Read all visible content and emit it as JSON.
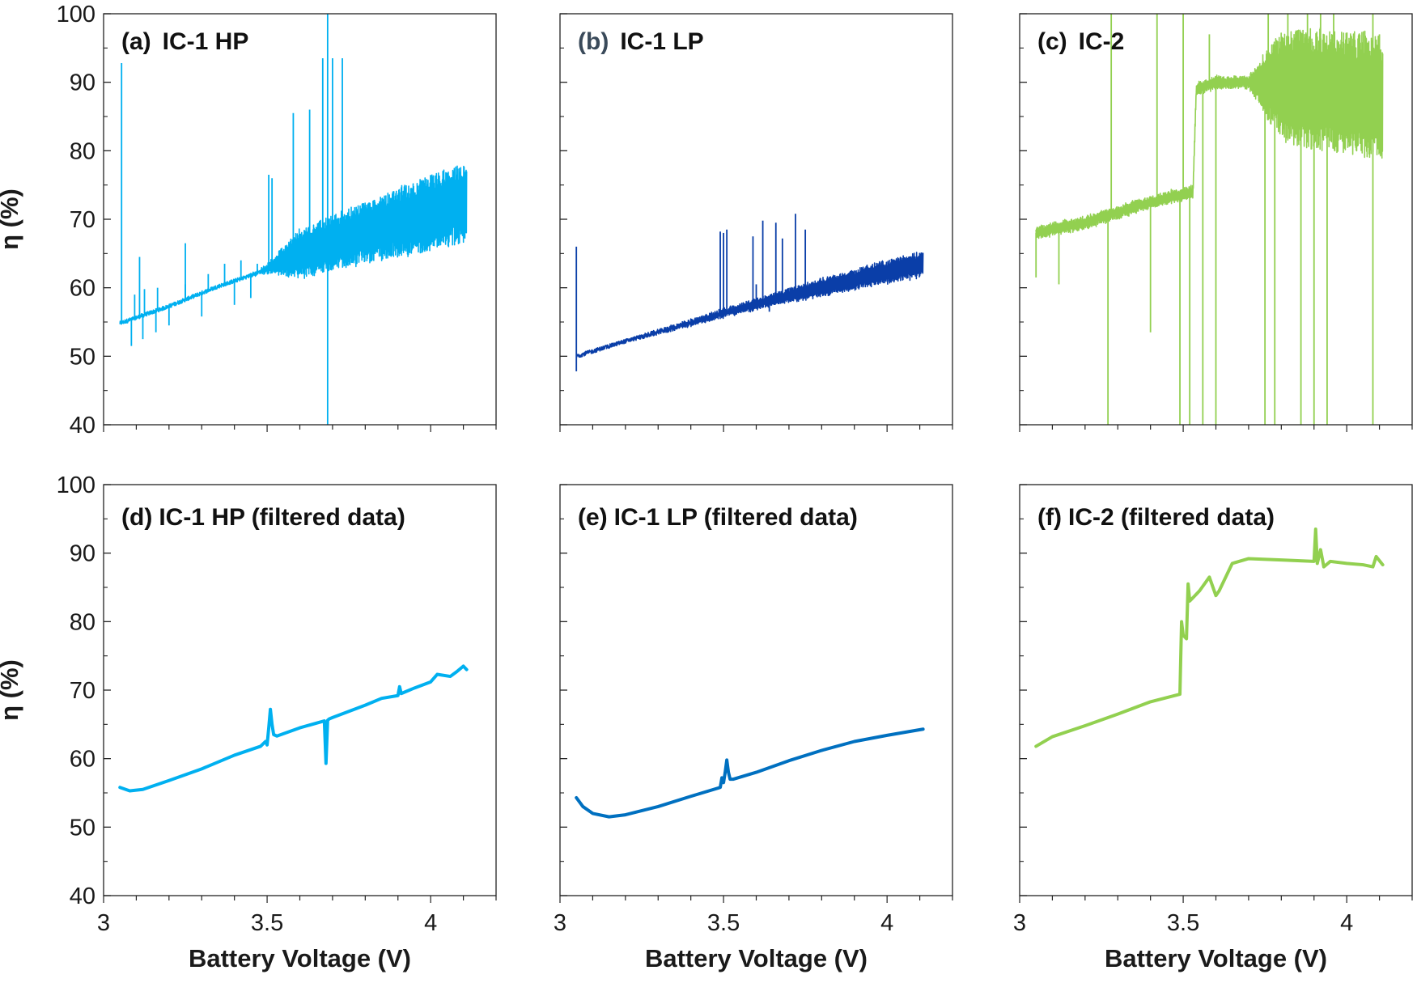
{
  "chart_data": {
    "type": "line",
    "layout": "2x3 grid of line plots",
    "shared": {
      "xlabel": "Battery Voltage (V)",
      "ylabel": "η (%)",
      "xlim": [
        3.0,
        4.2
      ],
      "ylim": [
        40,
        100
      ],
      "x_ticks": [
        3,
        3.5,
        4
      ],
      "x_tick_labels": [
        "3",
        "3.5",
        "4"
      ],
      "y_ticks": [
        40,
        50,
        60,
        70,
        80,
        90,
        100
      ],
      "y_tick_labels": [
        "40",
        "50",
        "60",
        "70",
        "80",
        "90",
        "100"
      ],
      "grid": false
    },
    "panels": [
      {
        "id": "a",
        "letter": "(a)",
        "label": "IC-1 HP",
        "color": "#00b0f0",
        "noisy": true,
        "x": [
          3.05,
          3.2,
          3.35,
          3.45,
          3.5,
          3.6,
          3.7,
          3.8,
          3.9,
          4.0,
          4.11
        ],
        "y": [
          54.8,
          57.3,
          60.2,
          61.8,
          62.8,
          65.0,
          66.5,
          68.0,
          69.5,
          71.0,
          72.5
        ],
        "noise_band": [
          0,
          0,
          0,
          0,
          0.5,
          3.5,
          4.0,
          4.5,
          5.0,
          5.5,
          5.5
        ],
        "spikes": [
          {
            "x": 3.055,
            "y": 92.8
          },
          {
            "x": 3.085,
            "y": 51.5
          },
          {
            "x": 3.095,
            "y": 59.0
          },
          {
            "x": 3.11,
            "y": 64.5
          },
          {
            "x": 3.12,
            "y": 52.5
          },
          {
            "x": 3.125,
            "y": 59.8
          },
          {
            "x": 3.16,
            "y": 53.5
          },
          {
            "x": 3.165,
            "y": 60.0
          },
          {
            "x": 3.2,
            "y": 54.5
          },
          {
            "x": 3.25,
            "y": 60.5
          },
          {
            "x": 3.25,
            "y": 66.5
          },
          {
            "x": 3.3,
            "y": 55.8
          },
          {
            "x": 3.32,
            "y": 62.0
          },
          {
            "x": 3.37,
            "y": 63.5
          },
          {
            "x": 3.4,
            "y": 57.5
          },
          {
            "x": 3.42,
            "y": 64.0
          },
          {
            "x": 3.45,
            "y": 58.5
          },
          {
            "x": 3.47,
            "y": 63.5
          },
          {
            "x": 3.505,
            "y": 76.5
          },
          {
            "x": 3.515,
            "y": 76.0
          },
          {
            "x": 3.58,
            "y": 85.5
          },
          {
            "x": 3.63,
            "y": 86.0
          },
          {
            "x": 3.67,
            "y": 93.5
          },
          {
            "x": 3.685,
            "y": 100.0
          },
          {
            "x": 3.685,
            "y": 40.0
          },
          {
            "x": 3.7,
            "y": 93.5
          },
          {
            "x": 3.73,
            "y": 93.5
          }
        ]
      },
      {
        "id": "b",
        "letter": "(b)",
        "label": "IC-1 LP",
        "color": "#0a3ea8",
        "noisy": true,
        "x": [
          3.05,
          3.2,
          3.35,
          3.5,
          3.65,
          3.8,
          3.95,
          4.11
        ],
        "y": [
          50.0,
          52.2,
          54.2,
          56.3,
          58.3,
          60.0,
          61.8,
          63.5
        ],
        "noise_band": [
          0,
          0,
          0.2,
          0.5,
          0.8,
          1.2,
          1.5,
          1.8
        ],
        "spikes": [
          {
            "x": 3.05,
            "y": 66.0
          },
          {
            "x": 3.05,
            "y": 47.8
          },
          {
            "x": 3.49,
            "y": 68.2
          },
          {
            "x": 3.5,
            "y": 68.0
          },
          {
            "x": 3.51,
            "y": 68.5
          },
          {
            "x": 3.59,
            "y": 67.5
          },
          {
            "x": 3.6,
            "y": 60.5
          },
          {
            "x": 3.62,
            "y": 69.8
          },
          {
            "x": 3.64,
            "y": 56.5
          },
          {
            "x": 3.66,
            "y": 69.5
          },
          {
            "x": 3.68,
            "y": 67.2
          },
          {
            "x": 3.72,
            "y": 70.8
          },
          {
            "x": 3.75,
            "y": 68.5
          }
        ]
      },
      {
        "id": "c",
        "letter": "(c)",
        "label": "IC-2",
        "color": "#92d050",
        "noisy": true,
        "x": [
          3.05,
          3.1,
          3.2,
          3.3,
          3.4,
          3.48,
          3.53,
          3.54,
          3.6,
          3.7,
          3.8,
          3.9,
          4.0,
          4.11
        ],
        "y": [
          68.0,
          68.5,
          69.5,
          71.0,
          72.5,
          73.5,
          74.0,
          89.0,
          90.0,
          90.0,
          89.5,
          89.0,
          88.5,
          88.0
        ],
        "noise_band": [
          0.8,
          0.8,
          0.8,
          0.8,
          0.8,
          0.8,
          0.8,
          0.8,
          0.8,
          0.8,
          8.0,
          9.0,
          9.0,
          9.0
        ],
        "spikes": [
          {
            "x": 3.05,
            "y": 61.5
          },
          {
            "x": 3.12,
            "y": 60.5
          },
          {
            "x": 3.27,
            "y": 40.0
          },
          {
            "x": 3.28,
            "y": 100.0
          },
          {
            "x": 3.4,
            "y": 53.5
          },
          {
            "x": 3.42,
            "y": 100.0
          },
          {
            "x": 3.49,
            "y": 40.0
          },
          {
            "x": 3.5,
            "y": 100.0
          },
          {
            "x": 3.52,
            "y": 40.0
          },
          {
            "x": 3.56,
            "y": 40.0
          },
          {
            "x": 3.58,
            "y": 97.0
          },
          {
            "x": 3.6,
            "y": 40.0
          },
          {
            "x": 3.75,
            "y": 40.0
          },
          {
            "x": 3.76,
            "y": 100.0
          },
          {
            "x": 3.78,
            "y": 40.0
          },
          {
            "x": 3.82,
            "y": 100.0
          },
          {
            "x": 3.86,
            "y": 40.0
          },
          {
            "x": 3.88,
            "y": 100.0
          },
          {
            "x": 3.9,
            "y": 40.0
          },
          {
            "x": 3.92,
            "y": 100.0
          },
          {
            "x": 3.94,
            "y": 40.0
          },
          {
            "x": 3.96,
            "y": 100.0
          },
          {
            "x": 4.08,
            "y": 100.0
          },
          {
            "x": 4.08,
            "y": 40.0
          },
          {
            "x": 4.1,
            "y": 97.0
          }
        ]
      },
      {
        "id": "d",
        "letter": "(d)",
        "label": "IC-1 HP (filtered data)",
        "color": "#00b0f0",
        "noisy": false,
        "x": [
          3.05,
          3.08,
          3.12,
          3.2,
          3.3,
          3.4,
          3.48,
          3.495,
          3.5,
          3.505,
          3.51,
          3.515,
          3.52,
          3.53,
          3.6,
          3.675,
          3.68,
          3.685,
          3.69,
          3.7,
          3.8,
          3.85,
          3.9,
          3.905,
          3.91,
          3.95,
          4.0,
          4.02,
          4.06,
          4.08,
          4.1,
          4.11
        ],
        "y": [
          55.8,
          55.3,
          55.5,
          56.8,
          58.5,
          60.5,
          61.8,
          62.5,
          62.0,
          64.5,
          67.2,
          65.0,
          63.5,
          63.3,
          64.5,
          65.5,
          59.3,
          65.6,
          65.8,
          66.0,
          67.8,
          68.8,
          69.2,
          70.5,
          69.5,
          70.3,
          71.2,
          72.3,
          72.0,
          72.7,
          73.5,
          73.0
        ]
      },
      {
        "id": "e",
        "letter": "(e)",
        "label": "IC-1 LP (filtered data)",
        "color": "#0070c0",
        "noisy": false,
        "x": [
          3.05,
          3.07,
          3.1,
          3.15,
          3.2,
          3.3,
          3.4,
          3.49,
          3.495,
          3.5,
          3.505,
          3.51,
          3.515,
          3.52,
          3.53,
          3.6,
          3.7,
          3.8,
          3.9,
          4.0,
          4.11
        ],
        "y": [
          54.3,
          53.0,
          52.0,
          51.5,
          51.8,
          53.0,
          54.5,
          55.8,
          57.2,
          56.5,
          58.0,
          59.8,
          58.0,
          57.0,
          57.0,
          58.0,
          59.7,
          61.2,
          62.5,
          63.4,
          64.3
        ]
      },
      {
        "id": "f",
        "letter": "(f)",
        "label": "IC-2 (filtered data)",
        "color": "#92d050",
        "noisy": false,
        "x": [
          3.05,
          3.1,
          3.2,
          3.3,
          3.4,
          3.49,
          3.495,
          3.5,
          3.51,
          3.515,
          3.52,
          3.53,
          3.55,
          3.58,
          3.6,
          3.61,
          3.65,
          3.7,
          3.8,
          3.85,
          3.9,
          3.905,
          3.91,
          3.92,
          3.93,
          3.95,
          4.0,
          4.05,
          4.08,
          4.09,
          4.11
        ],
        "y": [
          61.8,
          63.2,
          64.8,
          66.5,
          68.3,
          69.4,
          80.0,
          78.0,
          77.5,
          85.5,
          83.0,
          83.5,
          84.5,
          86.5,
          83.8,
          84.5,
          88.5,
          89.2,
          89.0,
          88.9,
          88.8,
          93.5,
          88.5,
          90.5,
          88.0,
          88.8,
          88.5,
          88.3,
          88.0,
          89.5,
          88.3
        ]
      }
    ]
  }
}
